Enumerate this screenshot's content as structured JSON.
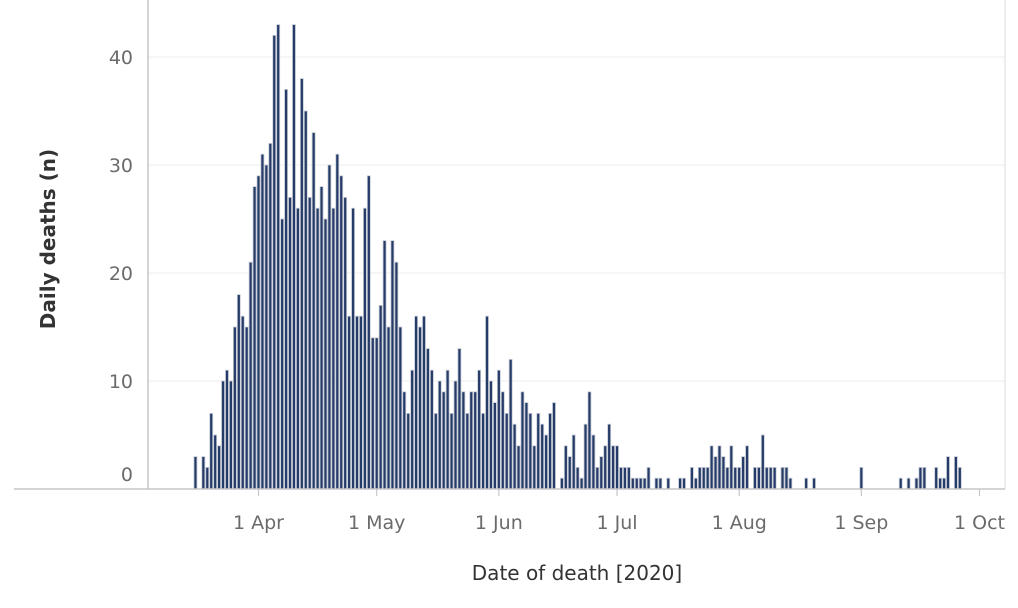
{
  "chart_data": {
    "type": "bar",
    "xlabel": "Date of death [2020]",
    "ylabel": "Daily deaths (n)",
    "ylim": [
      0,
      45
    ],
    "grid": "horizontal",
    "y_ticks": [
      0,
      10,
      20,
      30,
      40
    ],
    "x_ticks": [
      {
        "date": "2020-04-01",
        "label": "1 Apr"
      },
      {
        "date": "2020-05-01",
        "label": "1 May"
      },
      {
        "date": "2020-06-01",
        "label": "1 Jun"
      },
      {
        "date": "2020-07-01",
        "label": "1 Jul"
      },
      {
        "date": "2020-08-01",
        "label": "1 Aug"
      },
      {
        "date": "2020-09-01",
        "label": "1 Sep"
      },
      {
        "date": "2020-10-01",
        "label": "1 Oct"
      }
    ],
    "x": [
      "2020-03-16",
      "2020-03-18",
      "2020-03-19",
      "2020-03-20",
      "2020-03-21",
      "2020-03-22",
      "2020-03-23",
      "2020-03-24",
      "2020-03-25",
      "2020-03-26",
      "2020-03-27",
      "2020-03-28",
      "2020-03-29",
      "2020-03-30",
      "2020-03-31",
      "2020-04-01",
      "2020-04-02",
      "2020-04-03",
      "2020-04-04",
      "2020-04-05",
      "2020-04-06",
      "2020-04-07",
      "2020-04-08",
      "2020-04-09",
      "2020-04-10",
      "2020-04-11",
      "2020-04-12",
      "2020-04-13",
      "2020-04-14",
      "2020-04-15",
      "2020-04-16",
      "2020-04-17",
      "2020-04-18",
      "2020-04-19",
      "2020-04-20",
      "2020-04-21",
      "2020-04-22",
      "2020-04-23",
      "2020-04-24",
      "2020-04-25",
      "2020-04-26",
      "2020-04-27",
      "2020-04-28",
      "2020-04-29",
      "2020-04-30",
      "2020-05-01",
      "2020-05-02",
      "2020-05-03",
      "2020-05-04",
      "2020-05-05",
      "2020-05-06",
      "2020-05-07",
      "2020-05-08",
      "2020-05-09",
      "2020-05-10",
      "2020-05-11",
      "2020-05-12",
      "2020-05-13",
      "2020-05-14",
      "2020-05-15",
      "2020-05-16",
      "2020-05-17",
      "2020-05-18",
      "2020-05-19",
      "2020-05-20",
      "2020-05-21",
      "2020-05-22",
      "2020-05-23",
      "2020-05-24",
      "2020-05-25",
      "2020-05-26",
      "2020-05-27",
      "2020-05-28",
      "2020-05-29",
      "2020-05-30",
      "2020-05-31",
      "2020-06-01",
      "2020-06-02",
      "2020-06-03",
      "2020-06-04",
      "2020-06-05",
      "2020-06-06",
      "2020-06-07",
      "2020-06-08",
      "2020-06-09",
      "2020-06-10",
      "2020-06-11",
      "2020-06-12",
      "2020-06-13",
      "2020-06-14",
      "2020-06-15",
      "2020-06-17",
      "2020-06-18",
      "2020-06-19",
      "2020-06-20",
      "2020-06-21",
      "2020-06-22",
      "2020-06-23",
      "2020-06-24",
      "2020-06-25",
      "2020-06-26",
      "2020-06-27",
      "2020-06-28",
      "2020-06-29",
      "2020-06-30",
      "2020-07-01",
      "2020-07-02",
      "2020-07-03",
      "2020-07-04",
      "2020-07-05",
      "2020-07-06",
      "2020-07-07",
      "2020-07-08",
      "2020-07-09",
      "2020-07-11",
      "2020-07-12",
      "2020-07-14",
      "2020-07-17",
      "2020-07-18",
      "2020-07-20",
      "2020-07-21",
      "2020-07-22",
      "2020-07-23",
      "2020-07-24",
      "2020-07-25",
      "2020-07-26",
      "2020-07-27",
      "2020-07-28",
      "2020-07-29",
      "2020-07-30",
      "2020-07-31",
      "2020-08-01",
      "2020-08-02",
      "2020-08-03",
      "2020-08-05",
      "2020-08-06",
      "2020-08-07",
      "2020-08-08",
      "2020-08-09",
      "2020-08-10",
      "2020-08-12",
      "2020-08-13",
      "2020-08-14",
      "2020-08-18",
      "2020-08-20",
      "2020-09-01",
      "2020-09-11",
      "2020-09-13",
      "2020-09-15",
      "2020-09-16",
      "2020-09-17",
      "2020-09-20",
      "2020-09-21",
      "2020-09-22",
      "2020-09-23",
      "2020-09-25",
      "2020-09-26"
    ],
    "values": [
      3,
      3,
      2,
      7,
      5,
      4,
      10,
      11,
      10,
      15,
      18,
      16,
      15,
      21,
      28,
      29,
      31,
      30,
      32,
      42,
      43,
      25,
      37,
      27,
      43,
      26,
      38,
      35,
      27,
      33,
      26,
      28,
      25,
      30,
      26,
      31,
      29,
      27,
      16,
      26,
      16,
      16,
      26,
      29,
      14,
      14,
      17,
      23,
      15,
      23,
      21,
      15,
      9,
      7,
      11,
      16,
      15,
      16,
      13,
      11,
      7,
      10,
      9,
      11,
      7,
      10,
      13,
      9,
      7,
      9,
      9,
      11,
      7,
      16,
      10,
      8,
      11,
      9,
      7,
      12,
      6,
      4,
      9,
      8,
      7,
      4,
      7,
      6,
      5,
      7,
      8,
      1,
      4,
      3,
      5,
      2,
      1,
      6,
      9,
      5,
      2,
      3,
      4,
      6,
      4,
      4,
      2,
      2,
      2,
      1,
      1,
      1,
      1,
      2,
      1,
      1,
      1,
      1,
      1,
      2,
      1,
      2,
      2,
      2,
      4,
      3,
      4,
      3,
      2,
      4,
      2,
      2,
      3,
      4,
      2,
      2,
      5,
      2,
      2,
      2,
      2,
      2,
      1,
      1,
      1,
      2,
      1,
      1,
      1,
      2,
      2,
      2,
      1,
      1,
      3,
      3,
      2
    ],
    "colors": {
      "bar_fill": "#253b68",
      "bar_edge": "#c8ccd6",
      "grid": "#ececec",
      "axis": "#c6c6c6"
    }
  }
}
